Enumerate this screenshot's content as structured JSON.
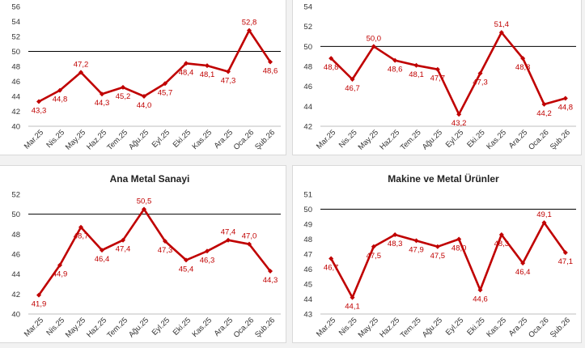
{
  "chart_data": [
    {
      "type": "line",
      "title": "",
      "categories": [
        "Mar.25",
        "Nis.25",
        "May.25",
        "Haz.25",
        "Tem.25",
        "Ağu.25",
        "Eyl.25",
        "Eki.25",
        "Kas.25",
        "Ara.25",
        "Oca.26",
        "Şub.26"
      ],
      "values": [
        43.3,
        44.8,
        47.2,
        44.3,
        45.2,
        44.0,
        45.7,
        48.4,
        48.1,
        47.3,
        52.8,
        48.6
      ],
      "labels": [
        "43,3",
        "44,8",
        "47,2",
        "44,3",
        "45,2",
        "44,0",
        "45,7",
        "48,4",
        "48,1",
        "47,3",
        "52,8",
        "48,6"
      ],
      "yticks": [
        40,
        42,
        44,
        46,
        48,
        50,
        52,
        54,
        56
      ],
      "ylim": [
        40,
        56
      ],
      "threshold": 50,
      "color": "#c00000"
    },
    {
      "type": "line",
      "title": "",
      "categories": [
        "Mar.25",
        "Nis.25",
        "May.25",
        "Haz.25",
        "Tem.25",
        "Ağu.25",
        "Eyl.25",
        "Eki.25",
        "Kas.25",
        "Ara.25",
        "Oca.26",
        "Şub.26"
      ],
      "values": [
        48.8,
        46.7,
        50.0,
        48.6,
        48.1,
        47.7,
        43.2,
        47.3,
        51.4,
        48.8,
        44.2,
        44.8
      ],
      "labels": [
        "48,8",
        "46,7",
        "50,0",
        "48,6",
        "48,1",
        "47,7",
        "43,2",
        "47,3",
        "51,4",
        "48,8",
        "44,2",
        "44,8"
      ],
      "yticks": [
        42,
        44,
        46,
        48,
        50,
        52,
        54
      ],
      "ylim": [
        42,
        54
      ],
      "threshold": 50,
      "color": "#c00000"
    },
    {
      "type": "line",
      "title": "Ana Metal Sanayi",
      "categories": [
        "Mar.25",
        "Nis.25",
        "May.25",
        "Haz.25",
        "Tem.25",
        "Ağu.25",
        "Eyl.25",
        "Eki.25",
        "Kas.25",
        "Ara.25",
        "Oca.26",
        "Şub.26"
      ],
      "values": [
        41.9,
        44.9,
        48.7,
        46.4,
        47.4,
        50.5,
        47.3,
        45.4,
        46.3,
        47.4,
        47.0,
        44.3
      ],
      "labels": [
        "41,9",
        "44,9",
        "48,7",
        "46,4",
        "47,4",
        "50,5",
        "47,3",
        "45,4",
        "46,3",
        "47,4",
        "47,0",
        "44,3"
      ],
      "yticks": [
        40,
        42,
        44,
        46,
        48,
        50,
        52
      ],
      "ylim": [
        40,
        52
      ],
      "threshold": 50,
      "color": "#c00000"
    },
    {
      "type": "line",
      "title": "Makine ve Metal Ürünler",
      "categories": [
        "Mar.25",
        "Nis.25",
        "May.25",
        "Haz.25",
        "Tem.25",
        "Ağu.25",
        "Eyl.25",
        "Eki.25",
        "Kas.25",
        "Ara.25",
        "Oca.26",
        "Şub.26"
      ],
      "values": [
        46.7,
        44.1,
        47.5,
        48.3,
        47.9,
        47.5,
        48.0,
        44.6,
        48.3,
        46.4,
        49.1,
        47.1
      ],
      "labels": [
        "46,7",
        "44,1",
        "47,5",
        "48,3",
        "47,9",
        "47,5",
        "48,0",
        "44,6",
        "48,3",
        "46,4",
        "49,1",
        "47,1"
      ],
      "yticks": [
        43,
        44,
        45,
        46,
        47,
        48,
        49,
        50,
        51
      ],
      "ylim": [
        43,
        51
      ],
      "threshold": 50,
      "color": "#c00000"
    }
  ]
}
